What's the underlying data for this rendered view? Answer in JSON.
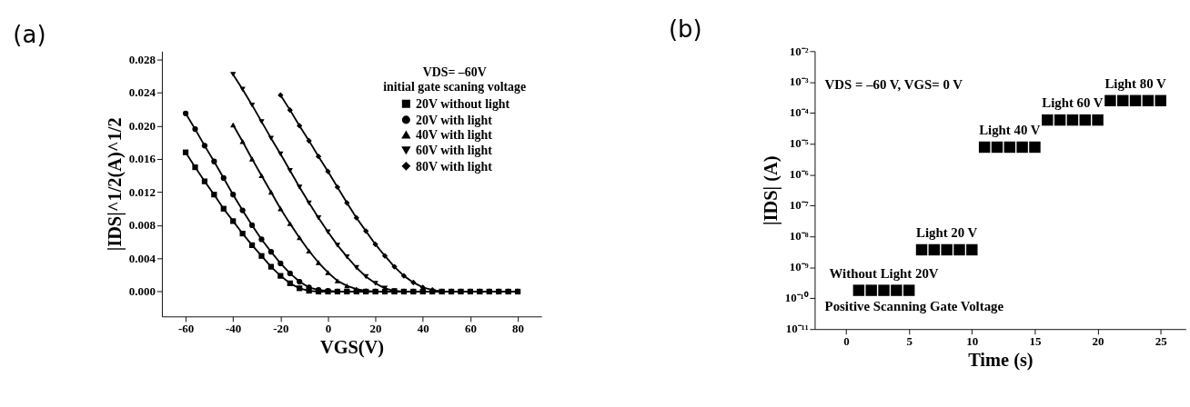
{
  "chart_data": [
    {
      "type": "line",
      "title": "(a)",
      "xlabel": "VGS(V)",
      "ylabel": "|IDS|^1/2(A)^1/2",
      "legend_title": "VDS= –60V\ninitial gate scaning voltage",
      "legend": "top right",
      "grid": false,
      "line_style": "solid",
      "x": [
        -60,
        -56,
        -52,
        -48,
        -44,
        -40,
        -36,
        -32,
        -28,
        -24,
        -20,
        -16,
        -12,
        -8,
        -4,
        0,
        4,
        8,
        12,
        16,
        20,
        24,
        28,
        32,
        36,
        40,
        44,
        48,
        52,
        56,
        60,
        64,
        68,
        72,
        76,
        80
      ],
      "xlim": [
        -70,
        90
      ],
      "xticks": [
        -60,
        -40,
        -20,
        0,
        20,
        40,
        60,
        80
      ],
      "ylim": [
        -0.003,
        0.029
      ],
      "yticks": [
        {
          "value": 0,
          "label": "0.000"
        },
        {
          "value": 0.004,
          "label": "0.004"
        },
        {
          "value": 0.008,
          "label": "0.008"
        },
        {
          "value": 0.012,
          "label": "0.012"
        },
        {
          "value": 0.016,
          "label": "0.016"
        },
        {
          "value": 0.02,
          "label": "0.020"
        },
        {
          "value": 0.024,
          "label": "0.024"
        },
        {
          "value": 0.028,
          "label": "0.028"
        }
      ],
      "series": [
        {
          "name": "20V without light",
          "color": "#000000",
          "marker": "square",
          "values": [
            0.0168,
            0.015,
            0.0133,
            0.0117,
            0.01,
            0.0085,
            0.007,
            0.0056,
            0.0043,
            0.003,
            0.0019,
            0.001,
            0.0004,
            0.0001,
            0,
            0,
            0,
            0,
            0,
            0,
            0,
            0,
            0,
            0,
            0,
            0,
            0,
            0,
            0,
            0,
            0,
            0,
            0,
            0,
            0,
            0
          ]
        },
        {
          "name": "20V with light",
          "color": "#000000",
          "marker": "circle",
          "values": [
            0.0215,
            0.0196,
            0.0176,
            0.0157,
            0.0137,
            0.0117,
            0.0098,
            0.008,
            0.0063,
            0.0048,
            0.0034,
            0.0022,
            0.0012,
            0.0005,
            0.0002,
            0.0001,
            0,
            0,
            0,
            0,
            0,
            0,
            0,
            0,
            0,
            0,
            0,
            0,
            0,
            0,
            0,
            0,
            0,
            0,
            0,
            0
          ]
        },
        {
          "name": "40V with light",
          "color": "#000000",
          "marker": "triangle",
          "values": [
            null,
            null,
            null,
            null,
            null,
            0.0201,
            0.0181,
            0.016,
            0.014,
            0.012,
            0.01,
            0.0082,
            0.0065,
            0.0049,
            0.0035,
            0.0023,
            0.0013,
            0.0007,
            0.0003,
            0.0001,
            0,
            0,
            0,
            0,
            0,
            0,
            0,
            0,
            0,
            0,
            0,
            0,
            0,
            0,
            0,
            0
          ]
        },
        {
          "name": "60V with light",
          "color": "#000000",
          "marker": "triangle-down",
          "values": [
            null,
            null,
            null,
            null,
            null,
            0.0262,
            0.0244,
            0.0225,
            0.0205,
            0.0185,
            0.0166,
            0.0146,
            0.0126,
            0.0107,
            0.0089,
            0.0072,
            0.0056,
            0.0042,
            0.0029,
            0.0018,
            0.001,
            0.0004,
            0.0001,
            0,
            0,
            0,
            0,
            0,
            0,
            0,
            0,
            0,
            0,
            0,
            0,
            0
          ]
        },
        {
          "name": "80V with light",
          "color": "#000000",
          "marker": "diamond",
          "values": [
            null,
            null,
            null,
            null,
            null,
            null,
            null,
            null,
            null,
            null,
            0.0237,
            0.0219,
            0.02,
            0.0182,
            0.0163,
            0.0145,
            0.0126,
            0.0107,
            0.0089,
            0.0073,
            0.0057,
            0.0043,
            0.003,
            0.0019,
            0.0011,
            0.0005,
            0.0002,
            0,
            0,
            0,
            0,
            0,
            0,
            0,
            0,
            0
          ]
        }
      ]
    },
    {
      "type": "scatter",
      "title": "(b)",
      "xlabel": "Time (s)",
      "ylabel": "|IDS| (A)",
      "log": "y",
      "grid": false,
      "marker": "square",
      "x": [
        1,
        2,
        3,
        4,
        5,
        6,
        7,
        8,
        9,
        10,
        11,
        12,
        13,
        14,
        15,
        16,
        17,
        18,
        19,
        20,
        21,
        22,
        23,
        24,
        25
      ],
      "xlim": [
        -2.5,
        27
      ],
      "xticks": [
        0,
        5,
        10,
        15,
        20,
        25
      ],
      "ylim": [
        1e-11,
        0.01
      ],
      "yticks": [
        {
          "value": 1e-11,
          "label": "10⁻¹¹"
        },
        {
          "value": 1e-10,
          "label": "10⁻¹⁰"
        },
        {
          "value": 1e-09,
          "label": "10⁻⁹"
        },
        {
          "value": 1e-08,
          "label": "10⁻⁸"
        },
        {
          "value": 1e-07,
          "label": "10⁻⁷"
        },
        {
          "value": 1e-06,
          "label": "10⁻⁶"
        },
        {
          "value": 1e-05,
          "label": "10⁻⁵"
        },
        {
          "value": 0.0001,
          "label": "10⁻⁴"
        },
        {
          "value": 0.001,
          "label": "10⁻³"
        },
        {
          "value": 0.01,
          "label": "10⁻²"
        }
      ],
      "series": [
        {
          "color": "#000000",
          "values": [
            1.8e-10,
            1.8e-10,
            1.8e-10,
            1.8e-10,
            1.8e-10,
            3.7e-09,
            3.7e-09,
            3.7e-09,
            3.7e-09,
            3.7e-09,
            7.8e-06,
            7.8e-06,
            7.8e-06,
            7.8e-06,
            7.8e-06,
            5.9e-05,
            5.9e-05,
            5.9e-05,
            5.9e-05,
            5.9e-05,
            0.00025,
            0.00025,
            0.00025,
            0.00025,
            0.00025
          ]
        }
      ],
      "annotations": [
        "VDS = –60 V, VGS= 0 V",
        "Positive Scanning Gate Voltage",
        {
          "text": "Without Light 20V",
          "x": 3,
          "y": 1.8e-10
        },
        {
          "text": "Light 20 V",
          "x": 8,
          "y": 3.7e-09
        },
        {
          "text": "Light 40 V",
          "x": 13,
          "y": 7.8e-06
        },
        {
          "text": "Light 60 V",
          "x": 18,
          "y": 5.9e-05
        },
        {
          "text": "Light 80 V",
          "x": 23,
          "y": 0.00025
        }
      ]
    }
  ]
}
